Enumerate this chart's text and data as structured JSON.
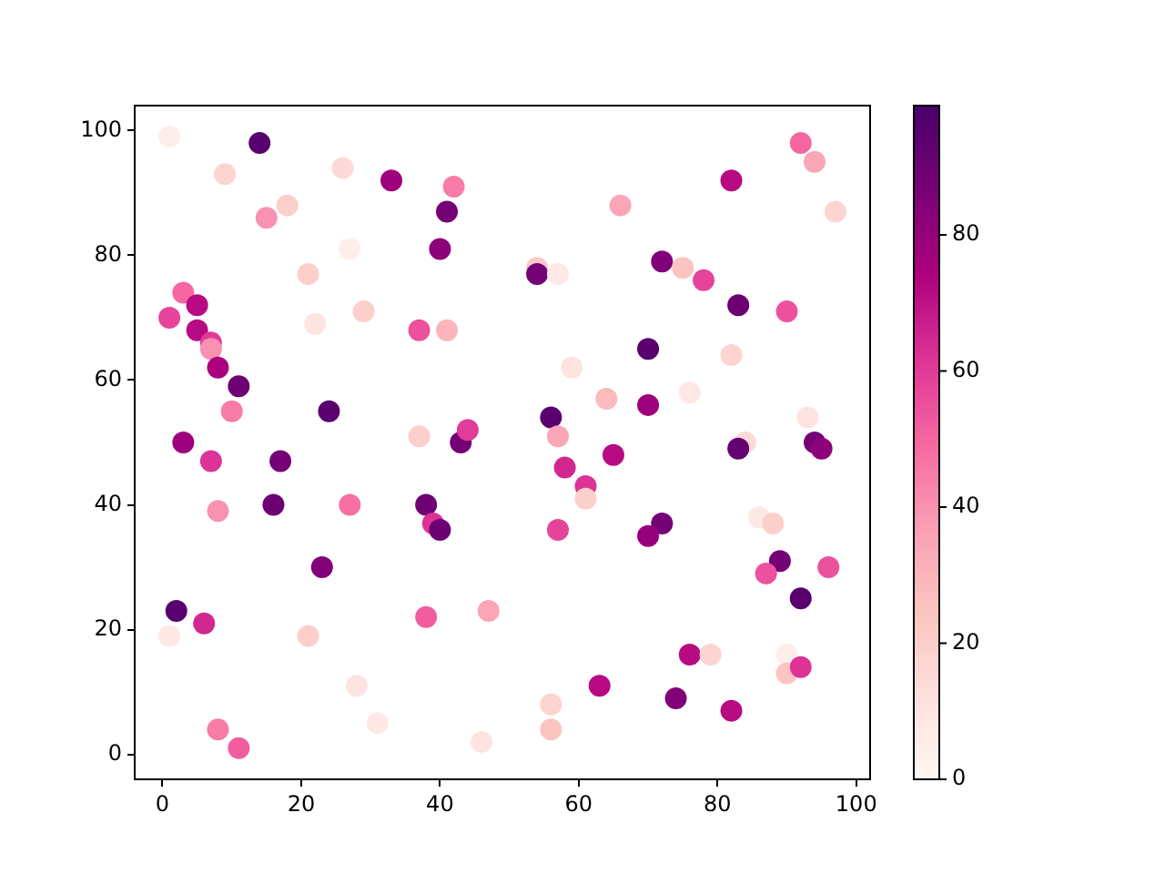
{
  "chart_data": {
    "type": "scatter",
    "marker": "circle",
    "grid": false,
    "legend": false,
    "xlim": [
      -4,
      102
    ],
    "ylim": [
      -4,
      104
    ],
    "xticks": [
      0,
      20,
      40,
      60,
      80,
      100
    ],
    "yticks": [
      0,
      20,
      40,
      60,
      80,
      100
    ],
    "clim": [
      0,
      99
    ],
    "cticks": [
      0,
      20,
      40,
      60,
      80
    ],
    "x": [
      1,
      14,
      9,
      26,
      33,
      42,
      18,
      15,
      41,
      27,
      40,
      21,
      3,
      5,
      1,
      22,
      29,
      5,
      37,
      41,
      7,
      7,
      8,
      11,
      10,
      24,
      37,
      43,
      44,
      3,
      7,
      17,
      8,
      16,
      27,
      38,
      39,
      40,
      23,
      2,
      6,
      1,
      21,
      38,
      47,
      28,
      31,
      8,
      11,
      46,
      92,
      94,
      82,
      66,
      97,
      54,
      54,
      57,
      72,
      75,
      78,
      83,
      90,
      70,
      59,
      82,
      64,
      70,
      76,
      56,
      57,
      93,
      84,
      83,
      94,
      95,
      65,
      58,
      61,
      61,
      57,
      72,
      70,
      86,
      88,
      89,
      87,
      96,
      92,
      76,
      79,
      90,
      90,
      92,
      63,
      74,
      82,
      56,
      56
    ],
    "values": [
      99,
      98,
      93,
      94,
      92,
      91,
      88,
      86,
      87,
      81,
      81,
      77,
      74,
      72,
      70,
      69,
      71,
      68,
      68,
      68,
      66,
      65,
      62,
      59,
      55,
      55,
      51,
      50,
      52,
      50,
      47,
      47,
      39,
      40,
      40,
      40,
      37,
      36,
      30,
      23,
      21,
      19,
      19,
      22,
      23,
      11,
      5,
      4,
      1,
      2,
      98,
      95,
      92,
      88,
      87,
      78,
      77,
      77,
      79,
      78,
      76,
      72,
      71,
      65,
      62,
      64,
      57,
      56,
      58,
      54,
      51,
      54,
      50,
      49,
      50,
      49,
      48,
      46,
      43,
      41,
      36,
      37,
      35,
      38,
      37,
      31,
      29,
      30,
      25,
      16,
      16,
      16,
      13,
      14,
      11,
      9,
      7,
      8,
      4
    ],
    "cvalues": [
      5,
      95,
      18,
      15,
      78,
      45,
      20,
      40,
      88,
      5,
      82,
      20,
      50,
      72,
      58,
      10,
      20,
      72,
      55,
      30,
      60,
      40,
      75,
      90,
      45,
      95,
      20,
      88,
      60,
      78,
      62,
      88,
      40,
      90,
      48,
      90,
      62,
      90,
      85,
      95,
      65,
      8,
      20,
      52,
      35,
      10,
      8,
      45,
      52,
      10,
      50,
      35,
      72,
      35,
      18,
      22,
      88,
      8,
      85,
      25,
      58,
      90,
      55,
      95,
      10,
      18,
      28,
      78,
      8,
      95,
      35,
      10,
      15,
      92,
      88,
      82,
      72,
      65,
      62,
      20,
      58,
      88,
      80,
      8,
      20,
      88,
      55,
      55,
      95,
      72,
      18,
      5,
      25,
      62,
      72,
      85,
      72,
      18,
      25
    ]
  }
}
